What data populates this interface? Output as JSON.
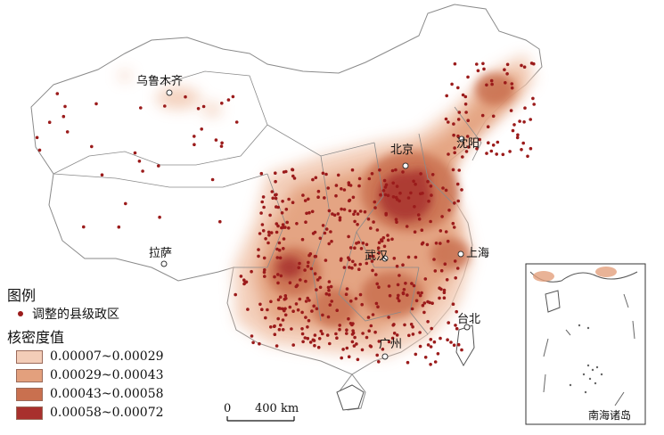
{
  "map": {
    "cities": [
      {
        "id": "urumqi",
        "label": "乌鲁木齐"
      },
      {
        "id": "beijing",
        "label": "北京"
      },
      {
        "id": "shenyang",
        "label": "沈阳"
      },
      {
        "id": "lhasa",
        "label": "拉萨"
      },
      {
        "id": "wuhan",
        "label": "武汉"
      },
      {
        "id": "shanghai",
        "label": "上海"
      },
      {
        "id": "taipei",
        "label": "台北"
      },
      {
        "id": "guangzhou",
        "label": "广州"
      }
    ],
    "inset_label": "南海诸岛"
  },
  "legend": {
    "title": "图例",
    "point_label": "调整的县级政区",
    "density_title": "核密度值",
    "classes": [
      {
        "label": "0.00007~0.00029",
        "color": "#f3cdb8"
      },
      {
        "label": "0.00029~0.00043",
        "color": "#e3a07d"
      },
      {
        "label": "0.00043~0.00058",
        "color": "#c9704f"
      },
      {
        "label": "0.00058~0.00072",
        "color": "#a8302d"
      }
    ]
  },
  "scale_bar": {
    "start": "0",
    "end": "400 km"
  },
  "colors": {
    "point": "#9b1b1b",
    "boundary": "#8a8a8a",
    "coast": "#555555"
  }
}
